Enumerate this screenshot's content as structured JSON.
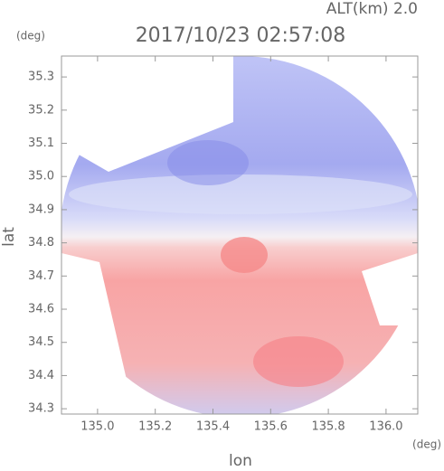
{
  "chart_data": {
    "type": "radar",
    "title": "2017/10/23 02:57:08",
    "altitude_label": "ALT(km) 2.0",
    "x_label": "lon",
    "y_label": "lat",
    "x_unit": "(deg)",
    "y_unit": "(deg)",
    "xlim": [
      134.875,
      136.11
    ],
    "ylim": [
      34.284,
      35.363
    ],
    "xticks": [
      {
        "value": 135,
        "label": "135.0"
      },
      135.2,
      135.4,
      135.6,
      135.8,
      {
        "value": 136,
        "label": "136.0"
      }
    ],
    "yticks": [
      34.3,
      34.4,
      34.5,
      34.6,
      34.7,
      34.8,
      34.9,
      {
        "value": 35,
        "label": "35.0"
      },
      35.1,
      35.2,
      35.3
    ]
  }
}
